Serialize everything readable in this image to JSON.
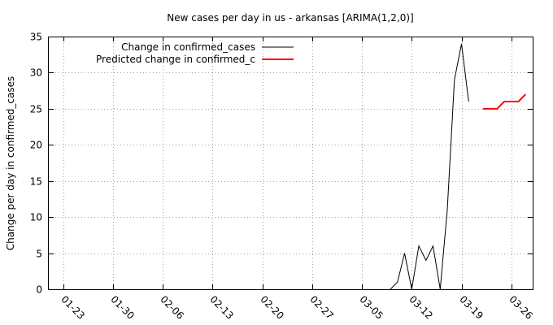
{
  "chart_data": {
    "type": "line",
    "title": "New cases per day in us - arkansas [ARIMA(1,2,0)]",
    "xlabel": "",
    "ylabel": "Change per day in confirmed_cases",
    "xlim": [
      "2020-01-21",
      "2020-03-29"
    ],
    "ylim": [
      0,
      35
    ],
    "yticks": [
      0,
      5,
      10,
      15,
      20,
      25,
      30,
      35
    ],
    "xticks": [
      {
        "date": "2020-01-23",
        "label": "01-23"
      },
      {
        "date": "2020-01-30",
        "label": "01-30"
      },
      {
        "date": "2020-02-06",
        "label": "02-06"
      },
      {
        "date": "2020-02-13",
        "label": "02-13"
      },
      {
        "date": "2020-02-20",
        "label": "02-20"
      },
      {
        "date": "2020-02-27",
        "label": "02-27"
      },
      {
        "date": "2020-03-05",
        "label": "03-05"
      },
      {
        "date": "2020-03-12",
        "label": "03-12"
      },
      {
        "date": "2020-03-19",
        "label": "03-19"
      },
      {
        "date": "2020-03-26",
        "label": "03-26"
      }
    ],
    "grid": true,
    "legend_position": "top-left",
    "series": [
      {
        "name": "Change in confirmed_cases",
        "color": "#000000",
        "x": [
          "2020-03-09",
          "2020-03-10",
          "2020-03-11",
          "2020-03-12",
          "2020-03-13",
          "2020-03-14",
          "2020-03-15",
          "2020-03-16",
          "2020-03-17",
          "2020-03-18",
          "2020-03-19",
          "2020-03-20",
          "2020-03-21"
        ],
        "y": [
          0,
          1,
          5,
          0,
          6,
          4,
          6,
          0,
          11,
          29,
          34,
          26,
          null
        ]
      },
      {
        "name": "Predicted change in confirmed_c",
        "color": "#ff0000",
        "x": [
          "2020-03-22",
          "2020-03-23",
          "2020-03-24",
          "2020-03-25",
          "2020-03-26",
          "2020-03-27",
          "2020-03-28"
        ],
        "y": [
          25,
          25,
          25,
          26,
          26,
          26,
          27
        ]
      }
    ]
  }
}
